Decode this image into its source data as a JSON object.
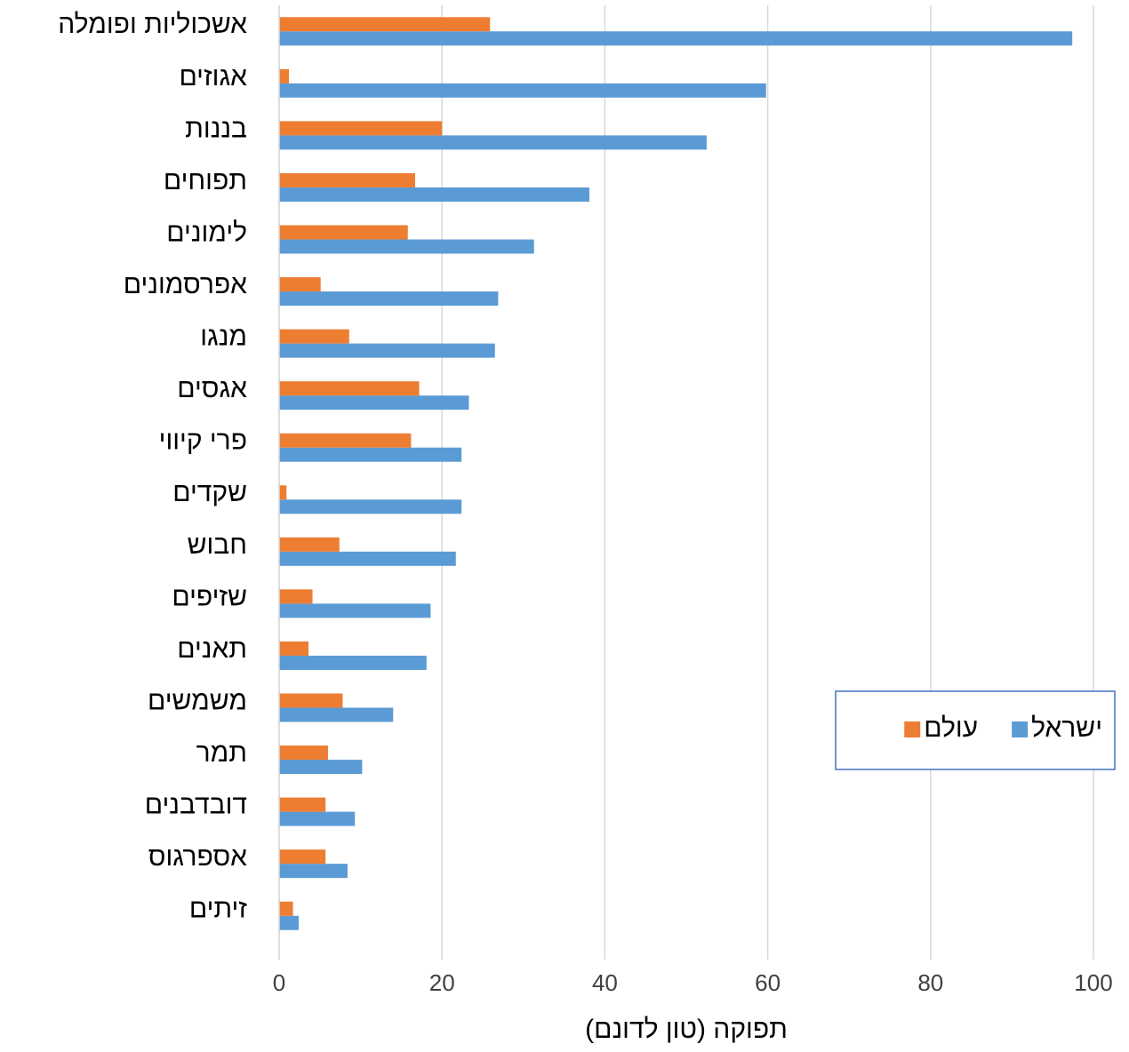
{
  "chart_data": {
    "type": "barh",
    "xlabel": "תפוקה (טון לדונם)",
    "categories": [
      "אשכוליות ופומלה",
      "אגוזים",
      "בננות",
      "תפוחים",
      "לימונים",
      "אפרסמונים",
      "מנגו",
      "אגסים",
      "פרי קיווי",
      "שקדים",
      "חבוש",
      "שזיפים",
      "תאנים",
      "משמשים",
      "תמר",
      "דובדבנים",
      "אספרגוס",
      "זיתים"
    ],
    "series": [
      {
        "name": "ישראל",
        "color": "#5b9bd5",
        "values": [
          97.4,
          59.8,
          52.5,
          38.1,
          31.3,
          26.9,
          26.5,
          23.3,
          22.4,
          22.4,
          21.7,
          18.6,
          18.1,
          14.0,
          10.2,
          9.3,
          8.4,
          2.4
        ]
      },
      {
        "name": "עולם",
        "color": "#ed7d31",
        "values": [
          25.9,
          1.2,
          20.0,
          16.7,
          15.8,
          5.1,
          8.6,
          17.2,
          16.2,
          0.9,
          7.4,
          4.1,
          3.6,
          7.8,
          6.0,
          5.7,
          5.7,
          1.7
        ]
      }
    ],
    "xlim": [
      0,
      100
    ],
    "xticks": [
      0,
      20,
      40,
      60,
      80,
      100
    ],
    "grid": true,
    "legend": "right"
  }
}
